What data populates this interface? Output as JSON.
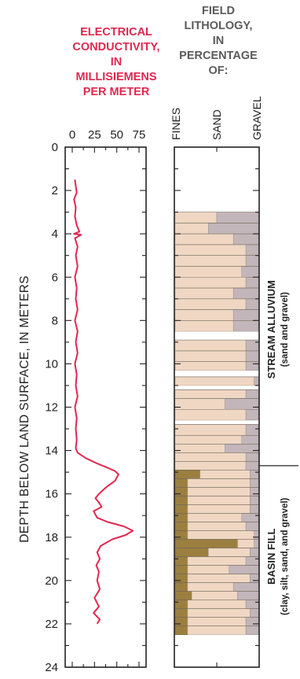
{
  "chart_data": {
    "type": "line",
    "title": "",
    "ylabel": "DEPTH BELOW LAND SURFACE, IN METERS",
    "ylim": [
      0,
      24
    ],
    "y_ticks": [
      "0",
      "2",
      "4",
      "6",
      "8",
      "10",
      "12",
      "14",
      "16",
      "18",
      "20",
      "22",
      "24"
    ],
    "conductivity": {
      "title_lines": [
        "ELECTRICAL",
        "CONDUCTIVITY,",
        "IN",
        "MILLISIEMENS",
        "PER METER"
      ],
      "xlim": [
        0,
        75
      ],
      "x_ticks": [
        "0",
        "25",
        "50",
        "75"
      ],
      "color": "#e0284f",
      "points": [
        [
          3,
          1.5
        ],
        [
          4,
          1.8
        ],
        [
          5,
          2.1
        ],
        [
          2,
          2.4
        ],
        [
          4,
          2.8
        ],
        [
          3,
          3.2
        ],
        [
          5,
          3.6
        ],
        [
          8,
          3.9
        ],
        [
          2,
          4.0
        ],
        [
          10,
          4.05
        ],
        [
          3,
          4.2
        ],
        [
          6,
          4.6
        ],
        [
          4,
          5.0
        ],
        [
          6,
          5.5
        ],
        [
          3,
          6.0
        ],
        [
          5,
          6.5
        ],
        [
          4,
          7.0
        ],
        [
          6,
          7.5
        ],
        [
          3,
          8.0
        ],
        [
          6,
          8.5
        ],
        [
          4,
          9.0
        ],
        [
          6,
          9.5
        ],
        [
          3,
          10.0
        ],
        [
          5,
          10.5
        ],
        [
          4,
          11.0
        ],
        [
          6,
          11.5
        ],
        [
          3,
          12.0
        ],
        [
          5,
          12.5
        ],
        [
          4,
          13.0
        ],
        [
          5,
          13.5
        ],
        [
          4,
          13.9
        ],
        [
          6,
          14.1
        ],
        [
          15,
          14.35
        ],
        [
          28,
          14.6
        ],
        [
          40,
          14.8
        ],
        [
          48,
          14.95
        ],
        [
          52,
          15.1
        ],
        [
          48,
          15.4
        ],
        [
          38,
          15.7
        ],
        [
          30,
          16.0
        ],
        [
          26,
          16.2
        ],
        [
          30,
          16.4
        ],
        [
          33,
          16.6
        ],
        [
          24,
          16.8
        ],
        [
          28,
          17.1
        ],
        [
          40,
          17.3
        ],
        [
          58,
          17.5
        ],
        [
          68,
          17.7
        ],
        [
          60,
          17.9
        ],
        [
          45,
          18.1
        ],
        [
          32,
          18.4
        ],
        [
          28,
          18.7
        ],
        [
          31,
          19.0
        ],
        [
          27,
          19.3
        ],
        [
          30,
          19.6
        ],
        [
          28,
          20.0
        ],
        [
          31,
          20.4
        ],
        [
          25,
          20.8
        ],
        [
          30,
          21.2
        ],
        [
          24,
          21.5
        ],
        [
          31,
          21.8
        ],
        [
          28,
          22.0
        ]
      ]
    },
    "lithology": {
      "title_lines": [
        "FIELD",
        "LITHOLOGY,",
        "IN",
        "PERCENTAGE",
        "OF:"
      ],
      "columns": [
        "FINES",
        "SAND",
        "GRAVEL"
      ],
      "colors": {
        "fines": "#9b7f3f",
        "sand": "#efd7c3",
        "gravel": "#c3b6ba",
        "gap": "#ffffff",
        "border": "#333333"
      },
      "intervals": [
        [
          3.0,
          3.5,
          0,
          50,
          50
        ],
        [
          3.5,
          4.0,
          0,
          40,
          60
        ],
        [
          4.0,
          4.5,
          0,
          70,
          30
        ],
        [
          4.5,
          5.0,
          0,
          85,
          15
        ],
        [
          5.0,
          5.5,
          0,
          85,
          15
        ],
        [
          5.5,
          6.0,
          0,
          80,
          20
        ],
        [
          6.0,
          6.5,
          0,
          85,
          15
        ],
        [
          6.5,
          7.0,
          0,
          70,
          30
        ],
        [
          7.0,
          7.5,
          0,
          85,
          15
        ],
        [
          7.5,
          8.0,
          0,
          70,
          30
        ],
        [
          8.0,
          8.5,
          0,
          70,
          30
        ],
        [
          8.9,
          9.4,
          0,
          85,
          15
        ],
        [
          9.4,
          9.9,
          0,
          85,
          15
        ],
        [
          9.9,
          10.3,
          0,
          85,
          15
        ],
        [
          10.6,
          11.0,
          0,
          95,
          5
        ],
        [
          11.2,
          11.6,
          0,
          85,
          15
        ],
        [
          11.6,
          12.1,
          0,
          60,
          40
        ],
        [
          12.1,
          12.6,
          0,
          85,
          15
        ],
        [
          12.8,
          13.3,
          0,
          85,
          15
        ],
        [
          13.3,
          13.7,
          0,
          80,
          20
        ],
        [
          13.7,
          14.1,
          0,
          60,
          40
        ],
        [
          14.1,
          14.5,
          0,
          85,
          15
        ],
        [
          14.5,
          14.9,
          0,
          85,
          15
        ],
        [
          14.9,
          15.3,
          30,
          60,
          10
        ],
        [
          15.3,
          15.7,
          15,
          75,
          10
        ],
        [
          15.7,
          16.1,
          15,
          75,
          10
        ],
        [
          16.1,
          16.5,
          15,
          75,
          10
        ],
        [
          16.5,
          16.9,
          15,
          75,
          10
        ],
        [
          16.9,
          17.3,
          15,
          65,
          20
        ],
        [
          17.3,
          17.7,
          15,
          70,
          15
        ],
        [
          17.7,
          18.1,
          15,
          80,
          5
        ],
        [
          18.1,
          18.5,
          75,
          20,
          5
        ],
        [
          18.5,
          18.9,
          40,
          50,
          10
        ],
        [
          18.9,
          19.3,
          15,
          70,
          15
        ],
        [
          19.3,
          19.7,
          15,
          50,
          35
        ],
        [
          19.7,
          20.1,
          15,
          75,
          10
        ],
        [
          20.1,
          20.5,
          15,
          55,
          30
        ],
        [
          20.5,
          20.9,
          20,
          55,
          25
        ],
        [
          20.9,
          21.3,
          15,
          70,
          15
        ],
        [
          21.3,
          21.7,
          15,
          75,
          10
        ],
        [
          21.7,
          22.1,
          15,
          70,
          15
        ],
        [
          22.1,
          22.5,
          15,
          70,
          15
        ]
      ]
    },
    "units": [
      {
        "title": "STREAM ALLUVIUM",
        "subtitle": "(sand and gravel)",
        "top": 3.0,
        "bottom": 14.7
      },
      {
        "title": "BASIN FILL",
        "subtitle": "(clay, silt, sand, and gravel)",
        "top": 14.7,
        "bottom": 22.5
      }
    ]
  }
}
